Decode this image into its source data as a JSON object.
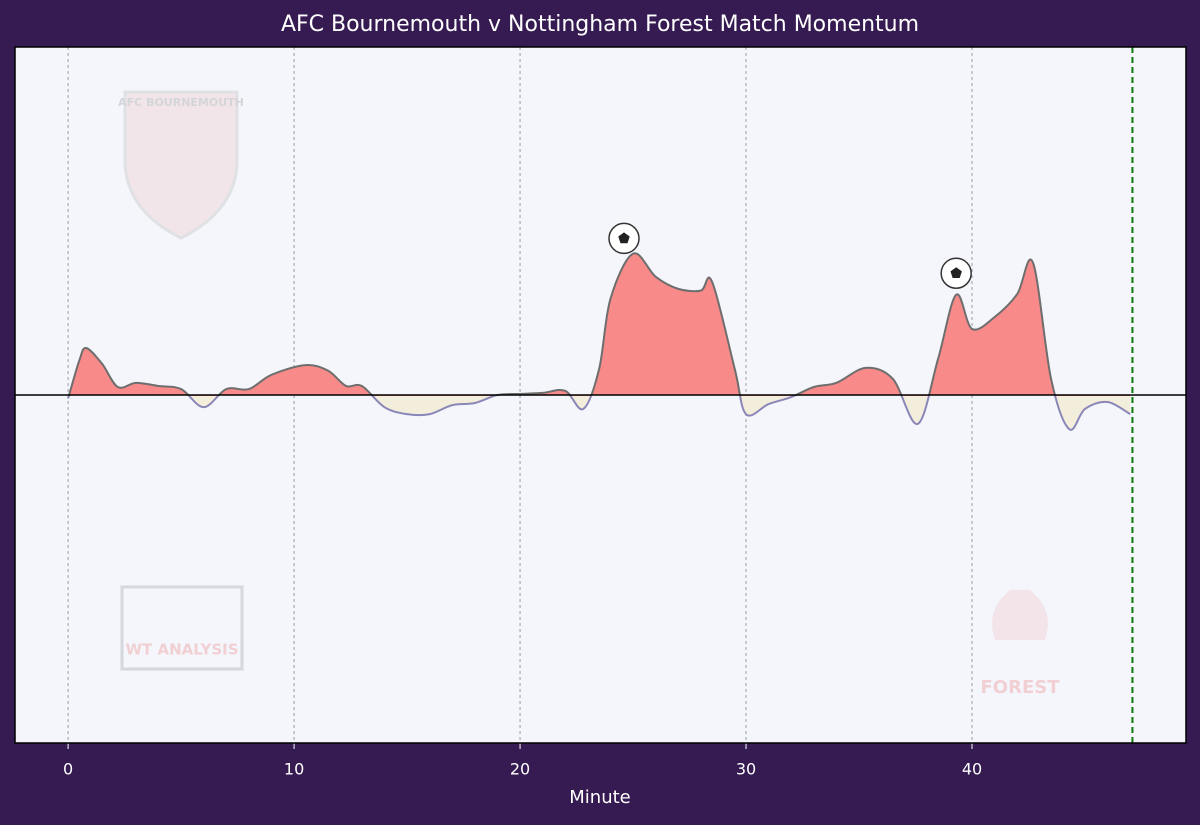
{
  "chart_data": {
    "type": "area",
    "title": "AFC Bournemouth v Nottingham Forest Match Momentum",
    "x_label": "Minute",
    "x": [
      0,
      0.5,
      0.8,
      1.5,
      2.2,
      3,
      4,
      5,
      6,
      7,
      8,
      9,
      10.5,
      11.5,
      12.3,
      13,
      14,
      15,
      16,
      17,
      18,
      19,
      20,
      21,
      22,
      22.8,
      23.5,
      24,
      25,
      26,
      27,
      28,
      28.5,
      29.5,
      30,
      31,
      32,
      33,
      34,
      35.3,
      36.5,
      37.6,
      38.5,
      39.3,
      40,
      41,
      42,
      42.7,
      43.5,
      44.3,
      45,
      46,
      47
    ],
    "values": [
      -1,
      10,
      13.5,
      9,
      2.3,
      3.5,
      2.6,
      1.7,
      -3.5,
      1.7,
      1.7,
      5.8,
      8.6,
      7,
      2.6,
      2.6,
      -3.5,
      -5.5,
      -5.5,
      -2.9,
      -2.3,
      0,
      0.3,
      0.6,
      1.2,
      -4,
      7.5,
      27.6,
      40.6,
      34,
      30.5,
      30,
      32.5,
      7.5,
      -5.5,
      -2.6,
      -0.6,
      2.3,
      3.5,
      7.8,
      4.6,
      -8.3,
      10.4,
      28.8,
      19,
      22.4,
      29,
      38,
      4.6,
      -9.8,
      -4,
      -2,
      -5.5
    ],
    "color_positive": "#f88a8a",
    "color_negative": "#f3eedb",
    "line_color_positive": "#6e6e6e",
    "line_color_negative": "#8a86b8",
    "goal_minutes": [
      24.6,
      39.3
    ],
    "goal_values": [
      45,
      35
    ],
    "current_minute": 47.1,
    "current_minute_color": "#0a7a0a",
    "xlim": [
      -2.35,
      49.47
    ],
    "ylim": [
      -100,
      100
    ],
    "xticks": [
      0,
      10,
      20,
      30,
      40
    ],
    "grid": true,
    "watermarks": [
      "AFC BOURNEMOUTH",
      "WT ANALYSIS",
      "FOREST"
    ]
  }
}
